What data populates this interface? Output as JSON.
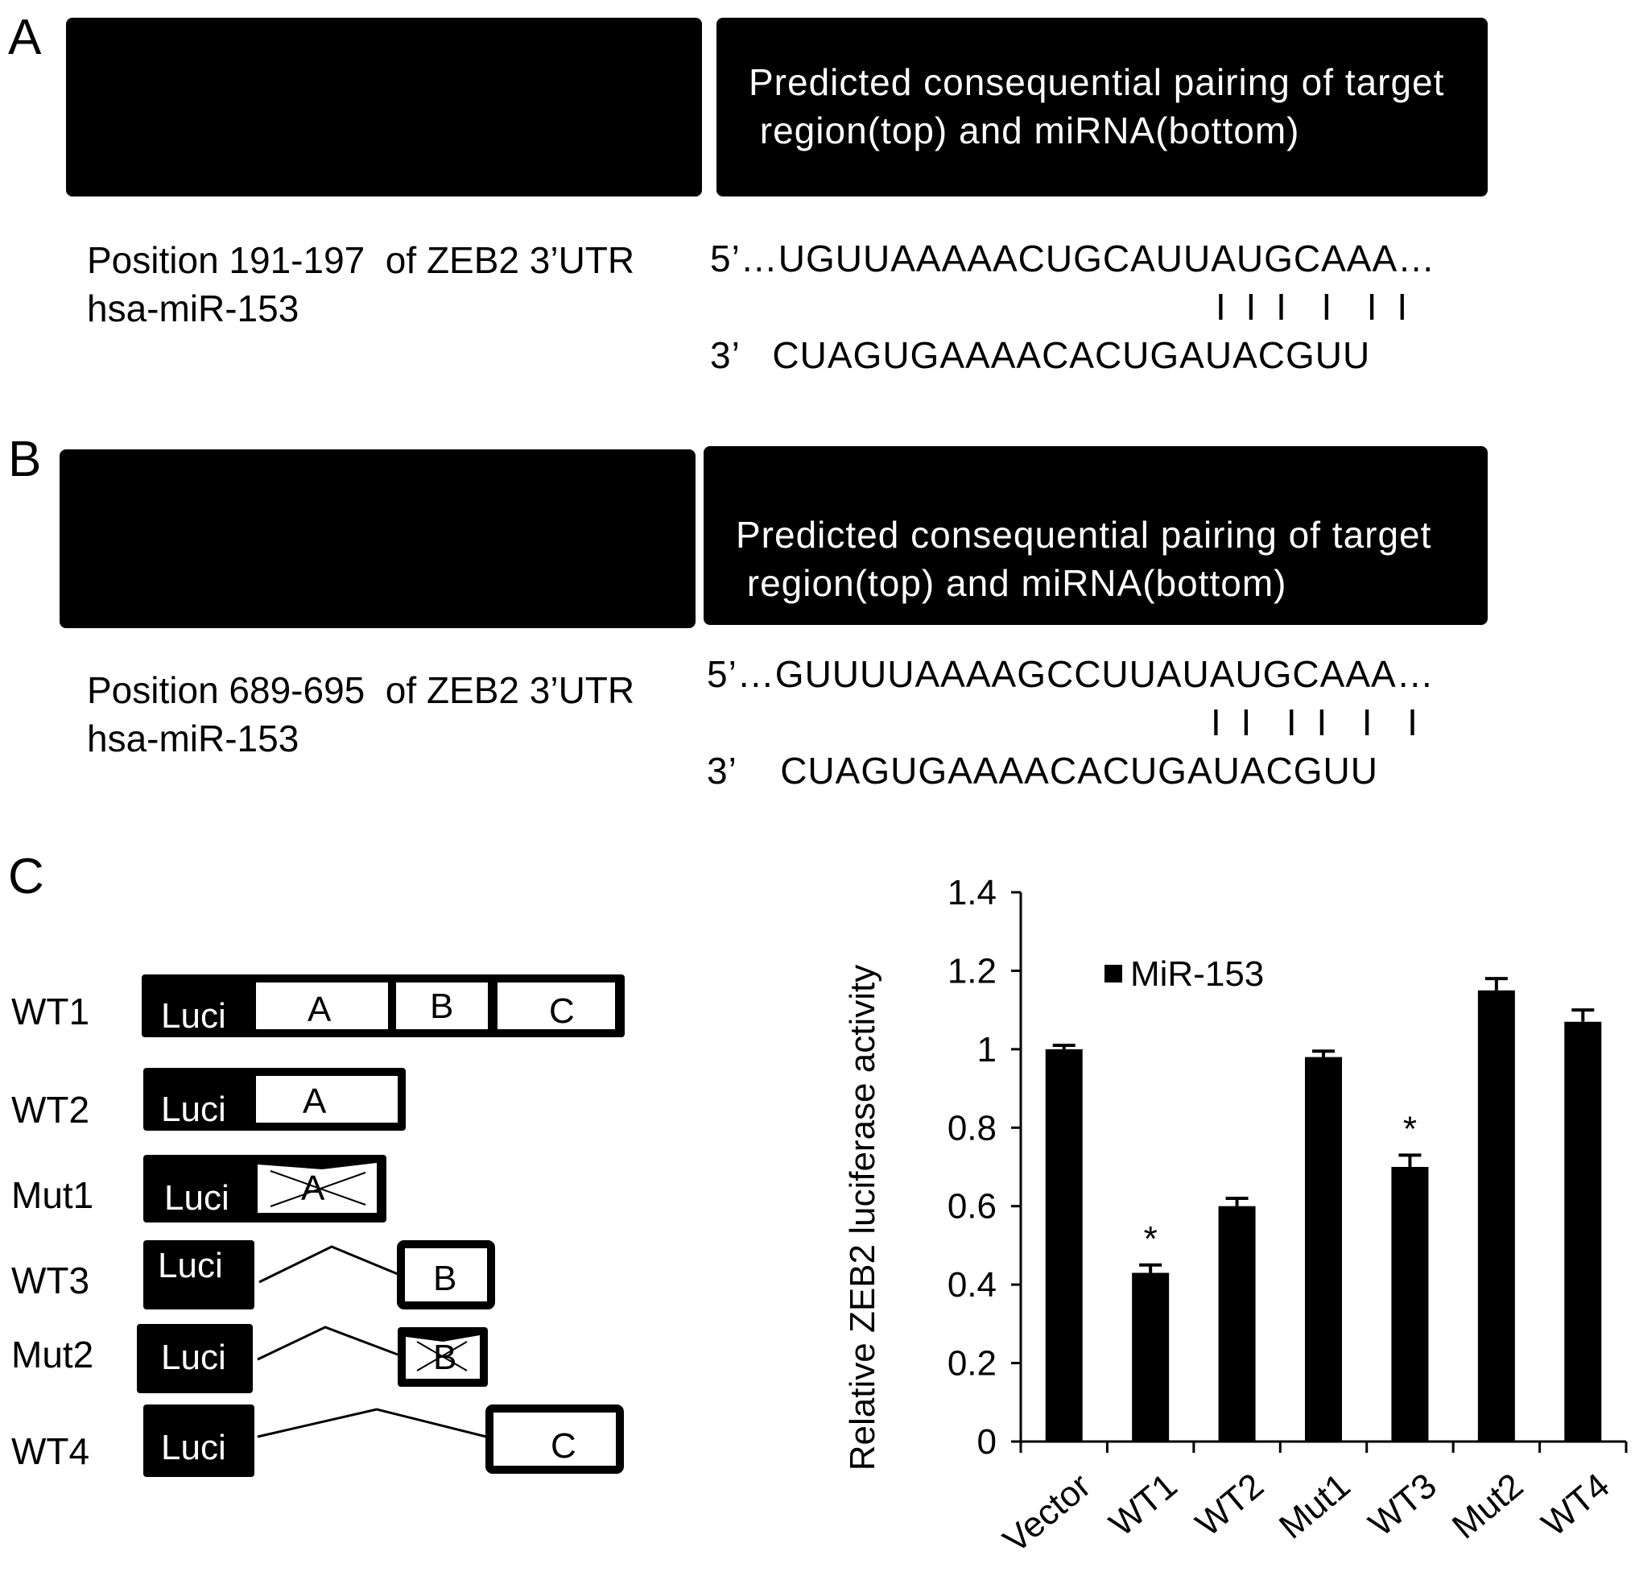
{
  "panel_a": {
    "label": "A",
    "header": "Predicted consequential pairing of target\n region(top) and miRNA(bottom)",
    "position_text": "Position 191-197  of ZEB2 3’UTR",
    "mirna": "hsa-miR-153",
    "target_seq": "5’…UGUUAAAAACUGCAUUAUGCAAA…",
    "pairing": "I I I  I  I I",
    "mirna_seq": "3’   CUAGUGAAAACACUGAUACGUU"
  },
  "panel_b": {
    "label": "B",
    "header": "Predicted consequential pairing of target\n region(top) and miRNA(bottom)",
    "position_text": "Position 689-695  of ZEB2 3’UTR",
    "mirna": "hsa-miR-153",
    "target_seq": "5’…GUUUUAAAAGCCUUAUAUGCAAA…",
    "pairing": "I I  I I  I  I",
    "mirna_seq": "3’    CUAGUGAAAACACUGAUACGUU"
  },
  "panel_c": {
    "label": "C",
    "constructs": [
      {
        "name": "WT1",
        "luci": "Luci",
        "segments": [
          "A",
          "B",
          "C"
        ]
      },
      {
        "name": "WT2",
        "luci": "Luci",
        "segments": [
          "A"
        ]
      },
      {
        "name": "Mut1",
        "luci": "Luci",
        "segments": [
          "A"
        ]
      },
      {
        "name": "WT3",
        "luci": "Luci",
        "segments": [
          "B"
        ]
      },
      {
        "name": "Mut2",
        "luci": "Luci",
        "segments": [
          "B"
        ]
      },
      {
        "name": "WT4",
        "luci": "Luci",
        "segments": [
          "C"
        ]
      }
    ]
  },
  "chart_data": {
    "type": "bar",
    "ylabel": "Relative  ZEB2 luciferase  activity",
    "ylim": [
      0,
      1.4
    ],
    "yticks": [
      "0",
      "0.2",
      "0.4",
      "0.6",
      "0.8",
      "1",
      "1.2",
      "1.4"
    ],
    "categories": [
      "Vector",
      "WT1",
      "WT2",
      "Mut1",
      "WT3",
      "Mut2",
      "WT4"
    ],
    "series": [
      {
        "name": "MiR-153",
        "values": [
          1.0,
          0.43,
          0.6,
          0.98,
          0.7,
          1.15,
          1.07
        ],
        "errors": [
          0.01,
          0.02,
          0.02,
          0.015,
          0.03,
          0.03,
          0.03
        ]
      }
    ],
    "annotations": [
      "",
      "*",
      "",
      "",
      "*",
      "",
      ""
    ],
    "legend": "top-left",
    "bar_color": "#000000"
  }
}
